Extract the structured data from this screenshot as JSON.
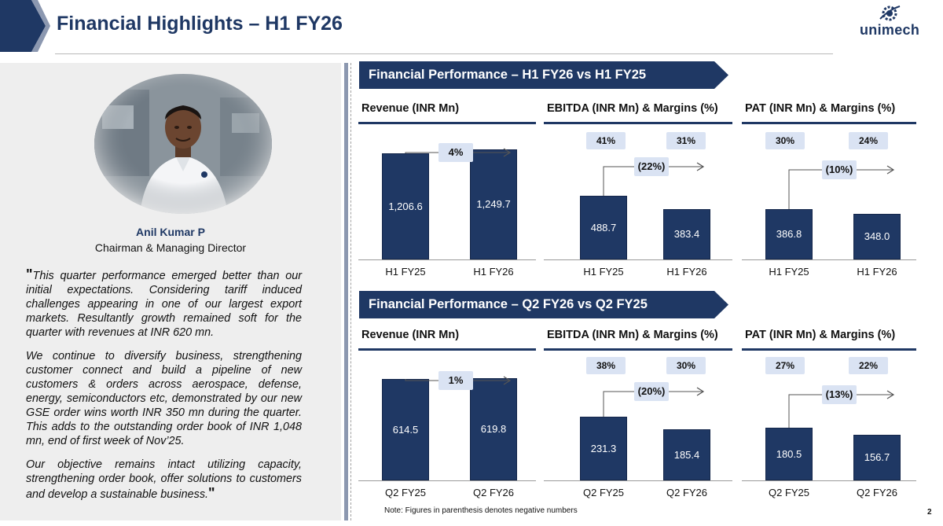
{
  "header": {
    "title": "Financial Highlights – H1 FY26",
    "logo_text": "unimech",
    "page_number": "2",
    "colors": {
      "navy": "#1f3864",
      "tag_bg": "#dae3f3"
    }
  },
  "speaker": {
    "name": "Anil Kumar P",
    "role": "Chairman & Managing Director",
    "quote_open": "\"",
    "quote_close": "\"",
    "quote_paragraphs": [
      "This quarter performance emerged better than our initial expectations. Considering tariff induced challenges appearing in one of our largest export markets. Resultantly growth remained soft for the quarter with revenues at INR 620 mn.",
      "We continue to diversify business, strengthening customer connect and build a pipeline of new customers & orders across aerospace, defense, energy, semiconductors etc, demonstrated by our new GSE order wins worth INR 350 mn during the quarter. This adds to the outstanding order book of INR 1,048 mn, end of first week of Nov’25.",
      "Our objective remains intact utilizing capacity, strengthening order book, offer solutions to customers and develop a sustainable business."
    ]
  },
  "sections": [
    {
      "title": "Financial Performance – H1 FY26 vs H1 FY25"
    },
    {
      "title": "Financial Performance – Q2 FY26 vs Q2 FY25"
    }
  ],
  "chart_data": [
    {
      "type": "bar",
      "section": 0,
      "title": "Revenue (INR Mn)",
      "categories": [
        "H1 FY25",
        "H1 FY26"
      ],
      "values": [
        1206.6,
        1249.7
      ],
      "value_labels": [
        "1,206.6",
        "1,249.7"
      ],
      "growth": "4%",
      "margins": []
    },
    {
      "type": "bar",
      "section": 0,
      "title": "EBITDA (INR Mn) & Margins (%)",
      "categories": [
        "H1 FY25",
        "H1 FY26"
      ],
      "values": [
        488.7,
        383.4
      ],
      "value_labels": [
        "488.7",
        "383.4"
      ],
      "growth": "(22%)",
      "margins": [
        "41%",
        "31%"
      ]
    },
    {
      "type": "bar",
      "section": 0,
      "title": "PAT (INR Mn) & Margins (%)",
      "categories": [
        "H1 FY25",
        "H1 FY26"
      ],
      "values": [
        386.8,
        348.0
      ],
      "value_labels": [
        "386.8",
        "348.0"
      ],
      "growth": "(10%)",
      "margins": [
        "30%",
        "24%"
      ]
    },
    {
      "type": "bar",
      "section": 1,
      "title": "Revenue (INR Mn)",
      "categories": [
        "Q2 FY25",
        "Q2 FY26"
      ],
      "values": [
        614.5,
        619.8
      ],
      "value_labels": [
        "614.5",
        "619.8"
      ],
      "growth": "1%",
      "margins": []
    },
    {
      "type": "bar",
      "section": 1,
      "title": "EBITDA (INR Mn) & Margins (%)",
      "categories": [
        "Q2 FY25",
        "Q2 FY26"
      ],
      "values": [
        231.3,
        185.4
      ],
      "value_labels": [
        "231.3",
        "185.4"
      ],
      "growth": "(20%)",
      "margins": [
        "38%",
        "30%"
      ]
    },
    {
      "type": "bar",
      "section": 1,
      "title": "PAT (INR Mn) & Margins (%)",
      "categories": [
        "Q2 FY25",
        "Q2 FY26"
      ],
      "values": [
        180.5,
        156.7
      ],
      "value_labels": [
        "180.5",
        "156.7"
      ],
      "growth": "(13%)",
      "margins": [
        "27%",
        "22%"
      ]
    }
  ],
  "footer": {
    "note": "Note: Figures in parenthesis denotes negative numbers"
  }
}
